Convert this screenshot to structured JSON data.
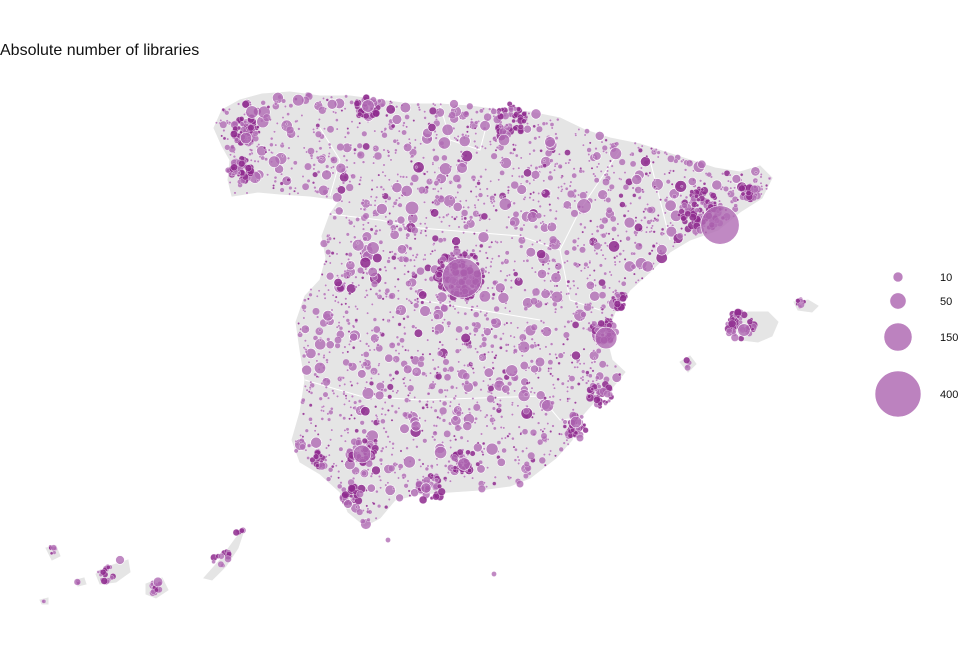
{
  "title": "Absolute number of libraries",
  "colors": {
    "land": "#e5e5e5",
    "border": "#ffffff",
    "bubble_fill": "#b06cb4",
    "bubble_fill_dense": "#8e2a8e",
    "bubble_stroke": "#ffffff"
  },
  "legend": {
    "entries": [
      {
        "label": "10",
        "value": 10
      },
      {
        "label": "50",
        "value": 50
      },
      {
        "label": "150",
        "value": 150
      },
      {
        "label": "400",
        "value": 400
      }
    ]
  }
}
